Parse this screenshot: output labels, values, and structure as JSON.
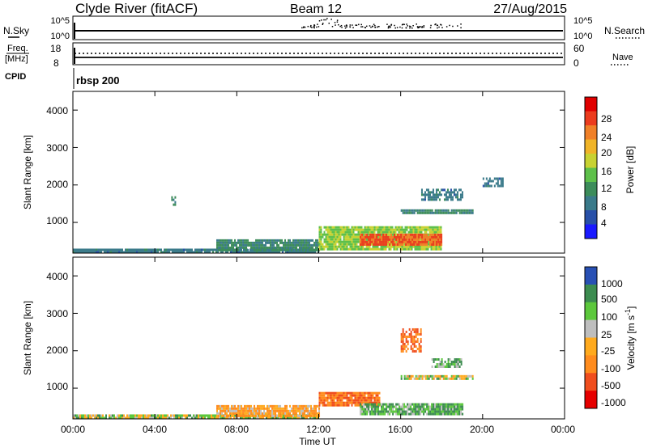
{
  "header": {
    "station": "Clyde River (fitACF)",
    "beam": "Beam 12",
    "date": "27/Aug/2015"
  },
  "nsky_panel": {
    "left_label": "N.Sky",
    "left_ticks": [
      "10^5",
      "10^0"
    ],
    "right_label": "N.Search",
    "right_ticks": [
      "10^5",
      "10^0"
    ]
  },
  "freq_panel": {
    "label_line1": "Freq.",
    "label_line2": "[MHz]",
    "left_ticks": [
      "18",
      "8"
    ],
    "right_label": "Nave",
    "right_ticks": [
      "60",
      "0"
    ]
  },
  "cpid_panel": {
    "label": "CPID",
    "program": "rbsp 200"
  },
  "time_axis": {
    "label": "Time UT",
    "ticks": [
      "00:00",
      "04:00",
      "08:00",
      "12:00",
      "16:00",
      "20:00",
      "00:00"
    ]
  },
  "power_panel": {
    "ylabel": "Slant Range [km]",
    "yticks": [
      "4000",
      "3000",
      "2000",
      "1000"
    ],
    "colorbar_label": "Power [dB]",
    "colorbar_ticks": [
      "28",
      "24",
      "20",
      "16",
      "12",
      "8",
      "4"
    ]
  },
  "velocity_panel": {
    "ylabel": "Slant Range [km]",
    "yticks": [
      "4000",
      "3000",
      "2000",
      "1000"
    ],
    "colorbar_label_main": "Velocity  [m s",
    "colorbar_label_sup": "-1",
    "colorbar_label_end": "]",
    "colorbar_ticks": [
      "1000",
      "500",
      "100",
      "25",
      "-25",
      "-100",
      "-500",
      "-1000"
    ]
  },
  "colors": {
    "power_scale": [
      "#1a1aff",
      "#2850a8",
      "#3a7a8a",
      "#3c8c5a",
      "#5ec04a",
      "#c8d232",
      "#f0b428",
      "#f08028",
      "#ec3c1e",
      "#e00000"
    ],
    "velocity_scale": [
      "#2850b4",
      "#3c8c50",
      "#5cc83c",
      "#bebebe",
      "#ffaa1e",
      "#ff8c1e",
      "#f04e1e",
      "#e60000"
    ]
  },
  "chart_data": [
    {
      "type": "heatmap",
      "title": "",
      "xlabel": "Time UT",
      "ylabel": "Slant Range [km]",
      "xlim": [
        0,
        24
      ],
      "ylim": [
        180,
        4500
      ],
      "colorbar": "Power [dB]",
      "colorbar_range": [
        0,
        32
      ],
      "features": [
        {
          "time": [
            0,
            12
          ],
          "range": [
            180,
            300
          ],
          "value": 8
        },
        {
          "time": [
            7,
            12
          ],
          "range": [
            250,
            550
          ],
          "value": 10
        },
        {
          "time": [
            12,
            18
          ],
          "range": [
            300,
            900
          ],
          "value": 16
        },
        {
          "time": [
            14,
            18
          ],
          "range": [
            400,
            700
          ],
          "value": 26
        },
        {
          "time": [
            16,
            19.5
          ],
          "range": [
            1250,
            1350
          ],
          "value": 10
        },
        {
          "time": [
            17,
            19
          ],
          "range": [
            1600,
            1900
          ],
          "value": 8
        },
        {
          "time": [
            20,
            21
          ],
          "range": [
            2000,
            2200
          ],
          "value": 8
        },
        {
          "time": [
            4.8,
            5
          ],
          "range": [
            1500,
            1700
          ],
          "value": 10
        }
      ]
    },
    {
      "type": "heatmap",
      "title": "",
      "xlabel": "Time UT",
      "ylabel": "Slant Range [km]",
      "xlim": [
        0,
        24
      ],
      "ylim": [
        180,
        4500
      ],
      "colorbar": "Velocity [m s-1]",
      "colorbar_range": [
        -1000,
        1000
      ],
      "features": [
        {
          "time": [
            0,
            12
          ],
          "range": [
            180,
            300
          ],
          "value": 25
        },
        {
          "time": [
            7,
            12
          ],
          "range": [
            250,
            550
          ],
          "value": -100
        },
        {
          "time": [
            12,
            15
          ],
          "range": [
            550,
            900
          ],
          "value": -500
        },
        {
          "time": [
            14,
            19
          ],
          "range": [
            300,
            600
          ],
          "value": 100
        },
        {
          "time": [
            16,
            19.5
          ],
          "range": [
            1250,
            1350
          ],
          "value": 0
        },
        {
          "time": [
            17.5,
            19
          ],
          "range": [
            1600,
            1800
          ],
          "value": 100
        },
        {
          "time": [
            16,
            17
          ],
          "range": [
            2000,
            2600
          ],
          "value": -500
        }
      ]
    }
  ]
}
